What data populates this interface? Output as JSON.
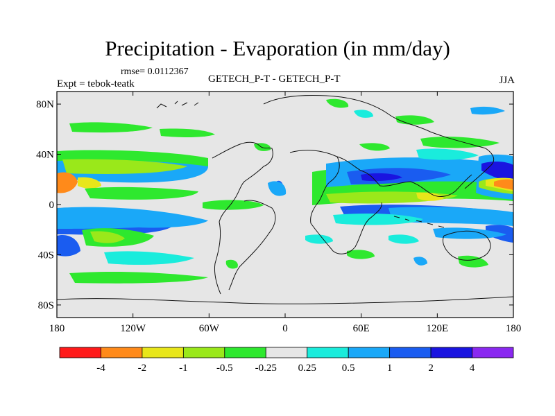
{
  "title": "Precipitation - Evaporation (in mm/day)",
  "rmse_text": "rmse= 0.0112367",
  "experiment_text": "Expt = tebok-teatk",
  "field_text": "GETECH_P-T - GETECH_P-T",
  "season": "JJA",
  "x_axis": {
    "tick_labels": [
      "180",
      "120W",
      "60W",
      "0",
      "60E",
      "120E",
      "180"
    ],
    "tick_values": [
      -180,
      -120,
      -60,
      0,
      60,
      120,
      180
    ]
  },
  "y_axis": {
    "tick_labels": [
      "80N",
      "40N",
      "0",
      "40S",
      "80S"
    ],
    "tick_values": [
      80,
      40,
      0,
      -40,
      -80
    ]
  },
  "colorbar": {
    "labels": [
      "-4",
      "-2",
      "-1",
      "-0.5",
      "-0.25",
      "0.25",
      "0.5",
      "1",
      "2",
      "4"
    ],
    "colors": [
      "#ff1a1a",
      "#ff8a1a",
      "#e8e61a",
      "#9ae81a",
      "#2ee82e",
      "#e6e6e6",
      "#1aecdc",
      "#1aa8f8",
      "#1a5cf0",
      "#1a14e0",
      "#8a28f0"
    ]
  },
  "colors": {
    "background": "#e6e6e6",
    "coast": "#111111"
  }
}
